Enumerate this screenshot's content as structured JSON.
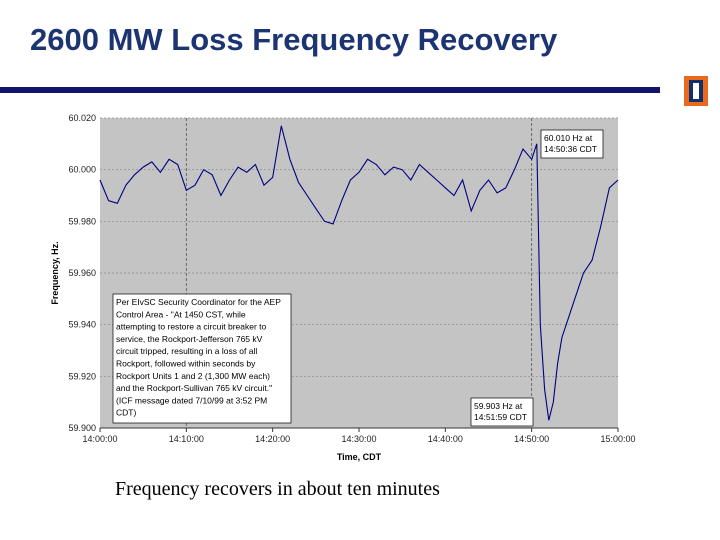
{
  "title": "2600 MW Loss Frequency Recovery",
  "caption": "Frequency recovers in about ten minutes",
  "chart_data": {
    "type": "line",
    "y_label": "Frequency, Hz.",
    "x_label": "Time, CDT",
    "x": [
      "14:00:00",
      "14:01:00",
      "14:02:00",
      "14:03:00",
      "14:04:00",
      "14:05:00",
      "14:06:00",
      "14:07:00",
      "14:08:00",
      "14:09:00",
      "14:10:00",
      "14:11:00",
      "14:12:00",
      "14:13:00",
      "14:14:00",
      "14:15:00",
      "14:16:00",
      "14:17:00",
      "14:18:00",
      "14:19:00",
      "14:20:00",
      "14:21:00",
      "14:22:00",
      "14:23:00",
      "14:24:00",
      "14:25:00",
      "14:26:00",
      "14:27:00",
      "14:28:00",
      "14:29:00",
      "14:30:00",
      "14:31:00",
      "14:32:00",
      "14:33:00",
      "14:34:00",
      "14:35:00",
      "14:36:00",
      "14:37:00",
      "14:38:00",
      "14:39:00",
      "14:40:00",
      "14:41:00",
      "14:42:00",
      "14:43:00",
      "14:44:00",
      "14:45:00",
      "14:46:00",
      "14:47:00",
      "14:48:00",
      "14:49:00",
      "14:50:00",
      "14:50:36",
      "14:51:00",
      "14:51:30",
      "14:51:59",
      "14:52:30",
      "14:53:00",
      "14:53:30",
      "14:54:00",
      "14:55:00",
      "14:56:00",
      "14:57:00",
      "14:58:00",
      "14:59:00",
      "15:00:00"
    ],
    "series": [
      {
        "name": "Frequency",
        "color": "#000080",
        "values": [
          59.996,
          59.988,
          59.987,
          59.994,
          59.998,
          60.001,
          60.003,
          59.999,
          60.004,
          60.002,
          59.992,
          59.994,
          60.0,
          59.998,
          59.99,
          59.996,
          60.001,
          59.999,
          60.002,
          59.994,
          59.997,
          60.017,
          60.004,
          59.995,
          59.99,
          59.985,
          59.98,
          59.979,
          59.988,
          59.996,
          59.999,
          60.004,
          60.002,
          59.998,
          60.001,
          60.0,
          59.996,
          60.002,
          59.999,
          59.996,
          59.993,
          59.99,
          59.996,
          59.984,
          59.992,
          59.996,
          59.991,
          59.993,
          60.0,
          60.008,
          60.004,
          60.01,
          59.94,
          59.915,
          59.903,
          59.91,
          59.925,
          59.935,
          59.94,
          59.95,
          59.96,
          59.965,
          59.978,
          59.993,
          59.996
        ]
      }
    ],
    "xlim": [
      "14:00:00",
      "15:00:00"
    ],
    "xticks": [
      "14:00:00",
      "14:10:00",
      "14:20:00",
      "14:30:00",
      "14:40:00",
      "14:50:00",
      "15:00:00"
    ],
    "vlines": [
      "14:10:00",
      "14:50:00"
    ],
    "ylim": [
      59.9,
      60.02
    ],
    "yticks": [
      {
        "value": 59.9,
        "label": "59.900"
      },
      {
        "value": 59.92,
        "label": "59.920"
      },
      {
        "value": 59.94,
        "label": "59.940"
      },
      {
        "value": 59.96,
        "label": "59.960"
      },
      {
        "value": 59.98,
        "label": "59.980"
      },
      {
        "value": 60.0,
        "label": "60.000"
      },
      {
        "value": 60.02,
        "label": "60.020"
      }
    ],
    "grid": true,
    "annotations": [
      {
        "lines": [
          "60.010 Hz at",
          "14:50:36 CDT"
        ]
      },
      {
        "lines": [
          "59.903 Hz at",
          "14:51:59 CDT"
        ]
      },
      {
        "lines": [
          "Per EIvSC Security Coordinator for the AEP",
          "Control Area - \"At 1450 CST, while",
          "attempting to restore a circuit breaker to",
          "service, the Rockport-Jefferson 765 kV",
          "circuit tripped, resulting in a loss of all",
          "Rockport, followed within seconds by",
          "Rockport Units 1 and 2 (1,300 MW each)",
          "and the Rockport-Sullivan 765 kV circuit.\"",
          "(ICF message dated 7/10/99 at 3:52 PM",
          "CDT)"
        ]
      }
    ]
  }
}
